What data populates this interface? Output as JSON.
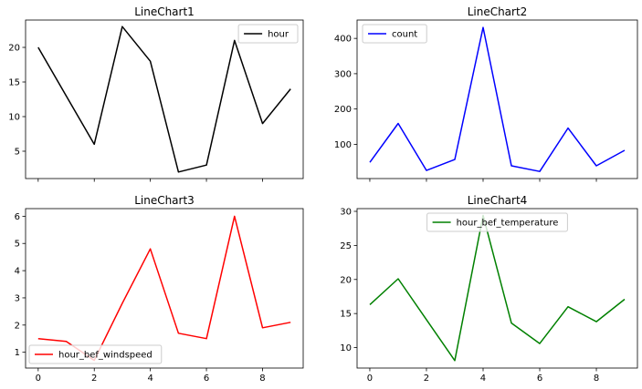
{
  "chart_data": [
    {
      "type": "line",
      "title": "LineChart1",
      "xlim": [
        -0.45,
        9.45
      ],
      "ylim": [
        1.05,
        23.95
      ],
      "xticks": [
        0,
        2,
        4,
        6,
        8
      ],
      "yticks": [
        5,
        10,
        15,
        20
      ],
      "show_xtick_labels": false,
      "legend_loc": "top-right",
      "series": [
        {
          "name": "hour",
          "color": "#000000",
          "x": [
            0,
            1,
            2,
            3,
            4,
            5,
            6,
            7,
            8,
            9
          ],
          "y": [
            20,
            13,
            6,
            23,
            18,
            2,
            3,
            21,
            9,
            14
          ]
        }
      ]
    },
    {
      "type": "line",
      "title": "LineChart2",
      "xlim": [
        -0.45,
        9.45
      ],
      "ylim": [
        3,
        452
      ],
      "xticks": [
        0,
        2,
        4,
        6,
        8
      ],
      "yticks": [
        100,
        200,
        300,
        400
      ],
      "show_xtick_labels": false,
      "legend_loc": "top-left",
      "series": [
        {
          "name": "count",
          "color": "#0000ff",
          "x": [
            0,
            1,
            2,
            3,
            4,
            5,
            6,
            7,
            8,
            9
          ],
          "y": [
            49,
            159,
            26,
            57,
            431,
            39,
            23,
            146,
            39,
            83
          ]
        }
      ]
    },
    {
      "type": "line",
      "title": "LineChart3",
      "xlim": [
        -0.45,
        9.45
      ],
      "ylim": [
        0.42,
        6.28
      ],
      "xticks": [
        0,
        2,
        4,
        6,
        8
      ],
      "yticks": [
        1,
        2,
        3,
        4,
        5,
        6
      ],
      "show_xtick_labels": true,
      "legend_loc": "bottom-left",
      "series": [
        {
          "name": "hour_bef_windspeed",
          "color": "#ff0000",
          "x": [
            0,
            1,
            2,
            3,
            4,
            5,
            6,
            7,
            8,
            9
          ],
          "y": [
            1.5,
            1.4,
            0.7,
            2.8,
            4.8,
            1.7,
            1.5,
            6.0,
            1.9,
            2.1
          ]
        }
      ]
    },
    {
      "type": "line",
      "title": "LineChart4",
      "xlim": [
        -0.45,
        9.45
      ],
      "ylim": [
        7.0,
        30.4
      ],
      "xticks": [
        0,
        2,
        4,
        6,
        8
      ],
      "yticks": [
        10,
        15,
        20,
        25,
        30
      ],
      "show_xtick_labels": true,
      "legend_loc": "upper-center",
      "series": [
        {
          "name": "hour_bef_temperature",
          "color": "#008000",
          "x": [
            0,
            1,
            2,
            3,
            4,
            5,
            6,
            7,
            8,
            9
          ],
          "y": [
            16.3,
            20.1,
            14.1,
            8.1,
            29.4,
            13.6,
            10.6,
            16.0,
            13.8,
            17.1
          ]
        }
      ]
    }
  ]
}
